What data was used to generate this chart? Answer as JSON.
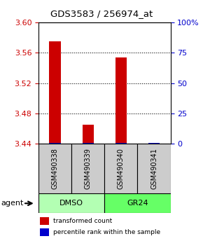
{
  "title": "GDS3583 / 256974_at",
  "samples": [
    "GSM490338",
    "GSM490339",
    "GSM490340",
    "GSM490341"
  ],
  "group_labels": [
    "DMSO",
    "GR24"
  ],
  "group_colors": [
    "#b3ffb3",
    "#66ff66"
  ],
  "red_values": [
    3.575,
    3.465,
    3.554,
    3.441
  ],
  "blue_values": [
    3.4415,
    3.4415,
    3.4415,
    3.4415
  ],
  "baseline": 3.44,
  "ylim_left": [
    3.44,
    3.6
  ],
  "ylim_right": [
    0,
    100
  ],
  "left_ticks": [
    3.44,
    3.48,
    3.52,
    3.56,
    3.6
  ],
  "right_ticks": [
    0,
    25,
    50,
    75,
    100
  ],
  "right_tick_labels": [
    "0",
    "25",
    "50",
    "75",
    "100%"
  ],
  "bar_width": 0.35,
  "red_color": "#cc0000",
  "blue_color": "#0000cc",
  "left_tick_color": "#cc0000",
  "right_tick_color": "#0000cc",
  "grid_color": "#000000",
  "sample_box_color": "#cccccc",
  "agent_label": "agent",
  "legend_red": "transformed count",
  "legend_blue": "percentile rank within the sample"
}
